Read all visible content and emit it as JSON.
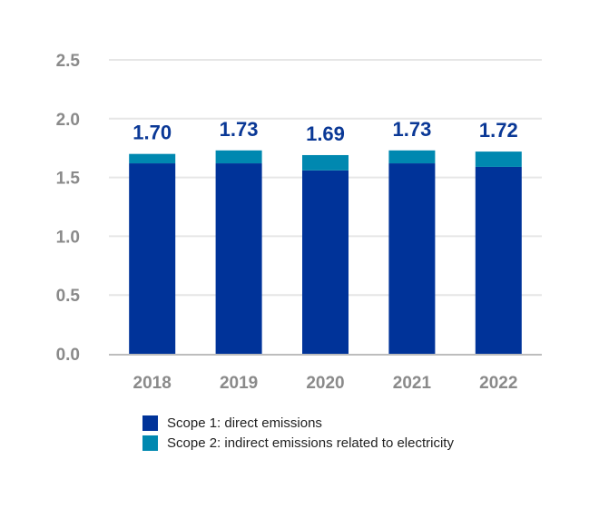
{
  "chart_data": {
    "type": "bar",
    "stacked": true,
    "categories": [
      "2018",
      "2019",
      "2020",
      "2021",
      "2022"
    ],
    "series": [
      {
        "name": "Scope 1: direct emissions",
        "values": [
          1.62,
          1.62,
          1.56,
          1.62,
          1.59
        ],
        "color": "#003399"
      },
      {
        "name": "Scope 2: indirect emissions related to electricity",
        "values": [
          0.08,
          0.11,
          0.13,
          0.11,
          0.13
        ],
        "color": "#0088b0"
      }
    ],
    "totals_labels": [
      "1.70",
      "1.73",
      "1.69",
      "1.73",
      "1.72"
    ],
    "yticks": [
      "0.0",
      "0.5",
      "1.0",
      "1.5",
      "2.0",
      "2.5"
    ],
    "ylim": [
      0,
      2.5
    ],
    "grid": true,
    "legend": "bottom"
  }
}
